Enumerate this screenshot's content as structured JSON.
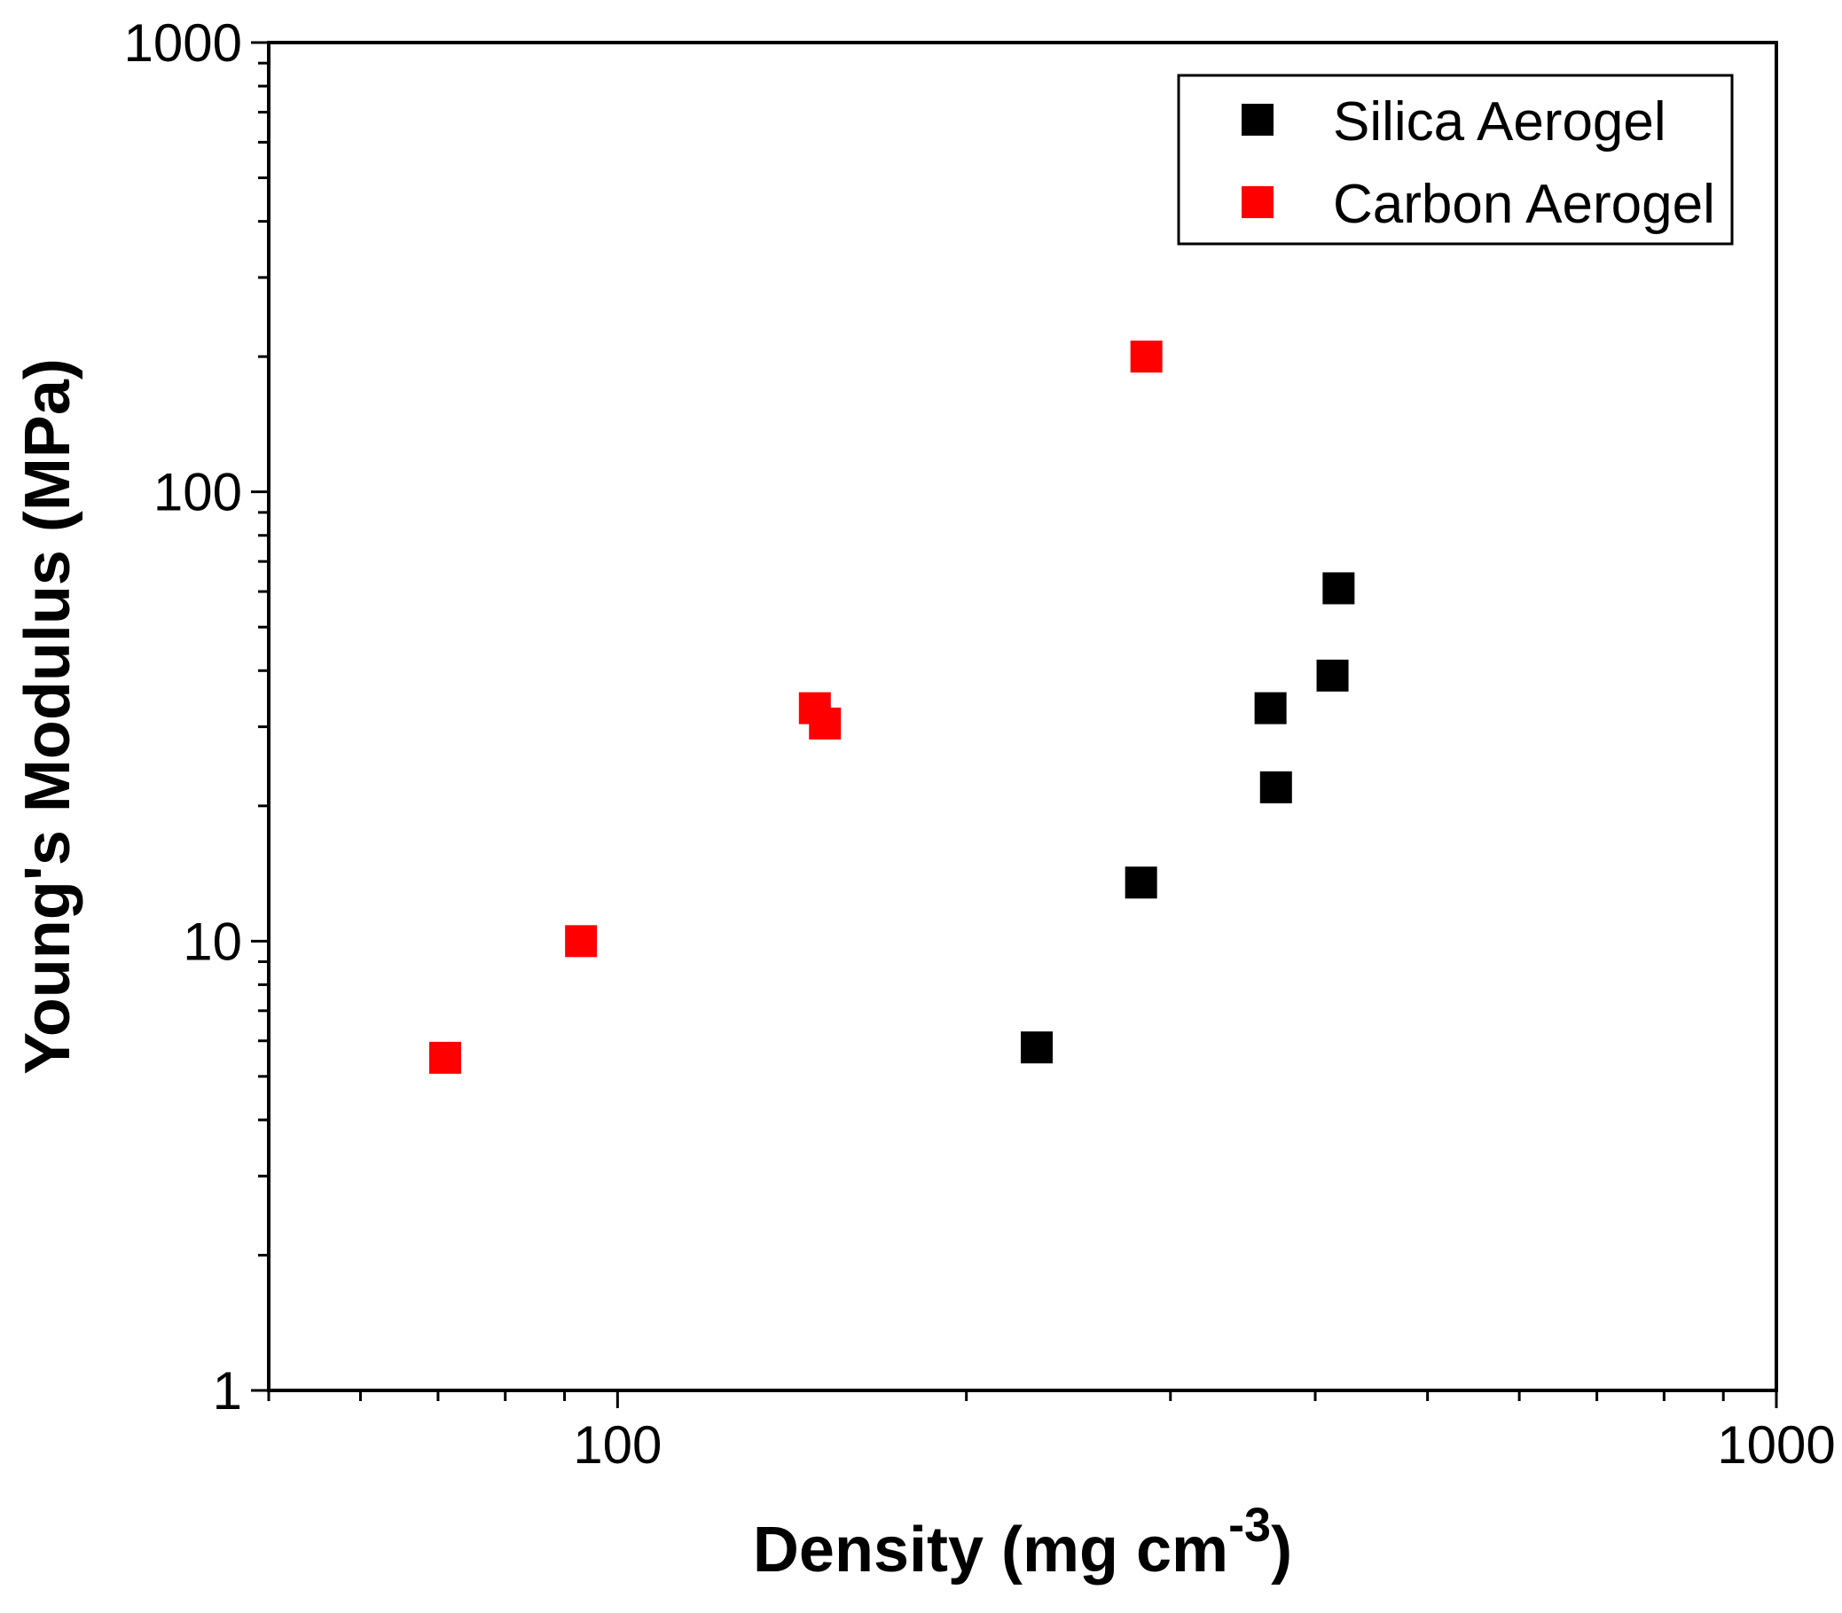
{
  "chart_data": {
    "type": "scatter",
    "title": "",
    "xlabel": "Density (mg cm",
    "xlabel_superscript": "-3",
    "xlabel_suffix": ")",
    "ylabel": "Young's Modulus (MPa)",
    "xscale": "log",
    "yscale": "log",
    "xlim": [
      50,
      1000
    ],
    "ylim": [
      1,
      1000
    ],
    "x_tick_labels": [
      {
        "value": 100,
        "label": "100"
      },
      {
        "value": 1000,
        "label": "1000"
      }
    ],
    "y_tick_labels": [
      {
        "value": 1,
        "label": "1"
      },
      {
        "value": 10,
        "label": "10"
      },
      {
        "value": 100,
        "label": "100"
      },
      {
        "value": 1000,
        "label": "1000"
      }
    ],
    "legend_position": "top-right",
    "series": [
      {
        "name": "Silica Aerogel",
        "color": "#000000",
        "marker": "square",
        "points": [
          {
            "x": 230,
            "y": 5.8
          },
          {
            "x": 283,
            "y": 13.5
          },
          {
            "x": 366,
            "y": 33
          },
          {
            "x": 370,
            "y": 22
          },
          {
            "x": 414,
            "y": 39
          },
          {
            "x": 419,
            "y": 61
          }
        ]
      },
      {
        "name": "Carbon Aerogel",
        "color": "#ff0000",
        "marker": "square",
        "points": [
          {
            "x": 71,
            "y": 5.5
          },
          {
            "x": 93,
            "y": 10
          },
          {
            "x": 148,
            "y": 33
          },
          {
            "x": 151,
            "y": 30.5
          },
          {
            "x": 286,
            "y": 200
          }
        ]
      }
    ]
  }
}
